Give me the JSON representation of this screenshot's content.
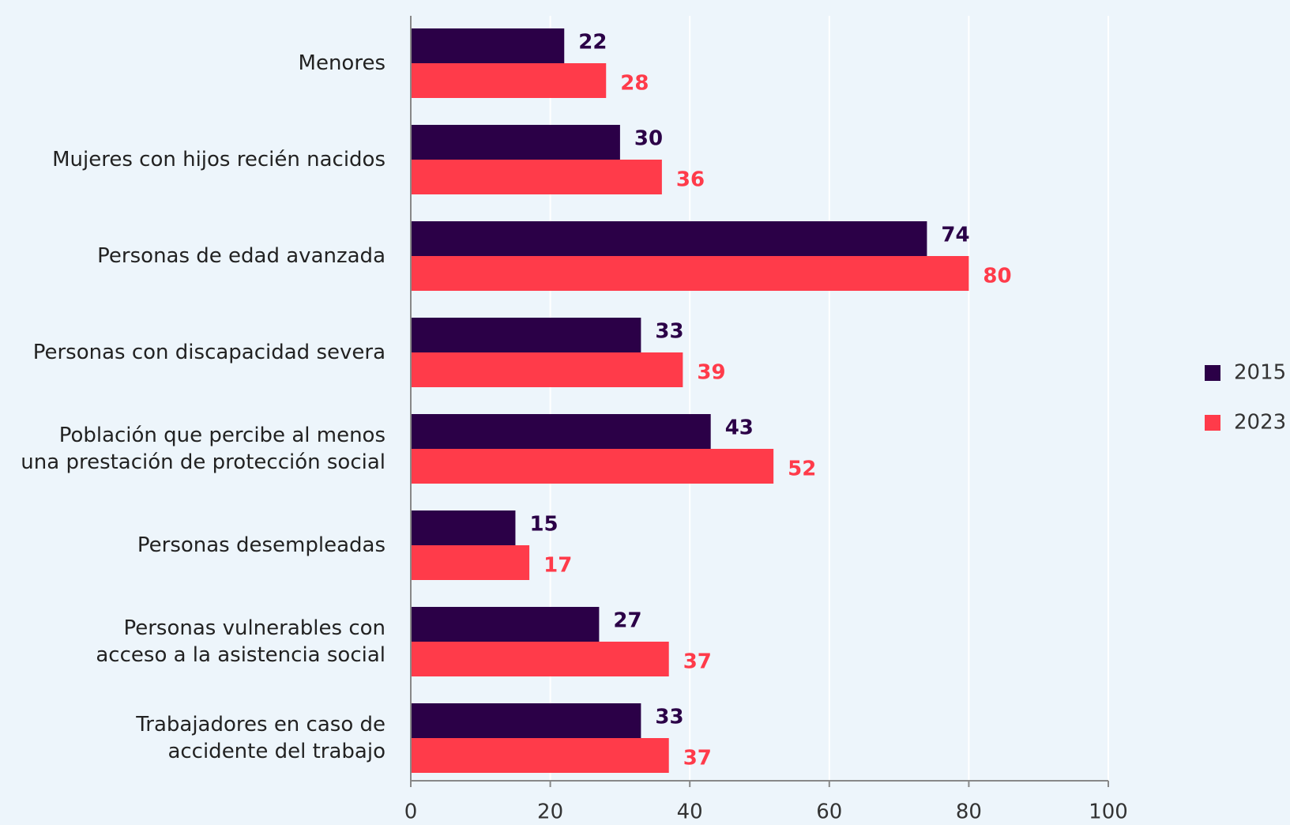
{
  "chart_data": {
    "type": "bar",
    "orientation": "horizontal",
    "categories": [
      "Menores",
      "Mujeres con hijos recién nacidos",
      "Personas de edad avanzada",
      "Personas con discapacidad severa",
      "Población que percibe al menos\nuna prestación de protección social",
      "Personas desempleadas",
      "Personas vulnerables con\nacceso a la asistencia social",
      "Trabajadores en caso de\naccidente del trabajo"
    ],
    "series": [
      {
        "name": "2015",
        "color": "#2b0047",
        "values": [
          22,
          30,
          74,
          33,
          43,
          15,
          27,
          33
        ]
      },
      {
        "name": "2023",
        "color": "#ff3b4a",
        "values": [
          28,
          36,
          80,
          39,
          52,
          17,
          37,
          37
        ]
      }
    ],
    "xlim": [
      0,
      100
    ],
    "xticks": [
      0,
      20,
      40,
      60,
      80,
      100
    ],
    "grid": true,
    "legend": "right"
  }
}
